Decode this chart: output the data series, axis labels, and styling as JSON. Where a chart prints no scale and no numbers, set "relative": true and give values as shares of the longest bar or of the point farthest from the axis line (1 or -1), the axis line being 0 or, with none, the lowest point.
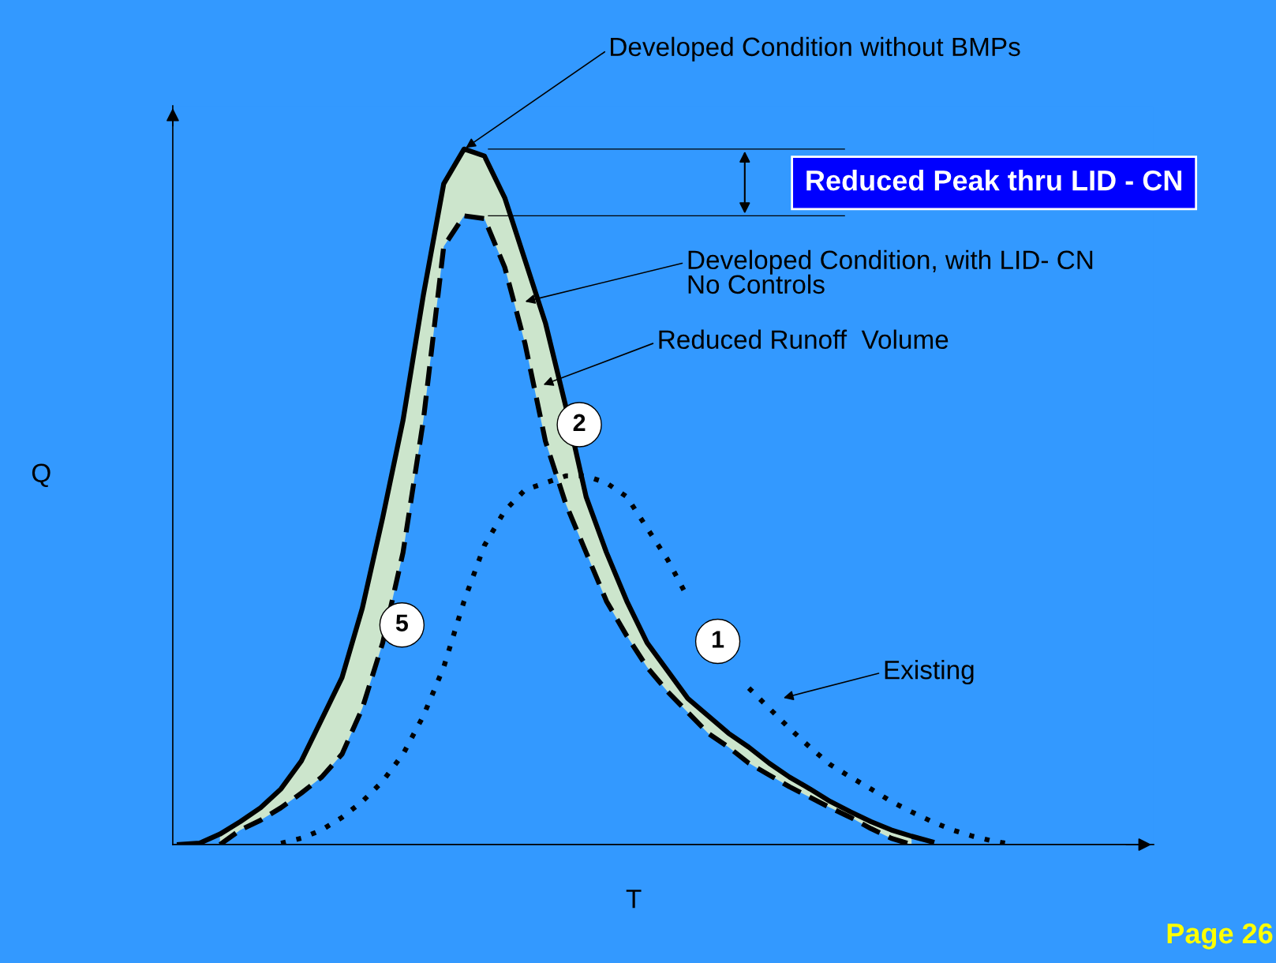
{
  "chart_data": {
    "type": "line",
    "relative": true,
    "xlabel": "T",
    "ylabel": "Q",
    "categories": [
      null,
      null,
      null,
      null,
      null,
      null,
      null,
      null,
      null,
      null,
      null,
      null,
      null,
      null,
      null,
      null,
      null,
      null,
      null,
      null,
      null,
      null,
      null,
      null,
      null,
      null,
      null,
      null,
      null,
      null,
      null,
      null,
      null,
      null,
      null,
      null,
      null,
      null,
      null,
      null,
      null,
      null
    ],
    "series": [
      {
        "color": "#000000",
        "line_style": "solid",
        "values": [
          0,
          0.002,
          0.015,
          0.033,
          0.053,
          0.08,
          0.12,
          0.18,
          0.24,
          0.34,
          0.47,
          0.61,
          0.79,
          0.95,
          1.0,
          0.99,
          0.93,
          0.84,
          0.75,
          0.63,
          0.5,
          0.42,
          0.35,
          0.29,
          0.25,
          0.21,
          0.185,
          0.16,
          0.14,
          0.117,
          0.097,
          0.08,
          0.062,
          0.047,
          0.033,
          0.021,
          0.012,
          0.004,
          null,
          null,
          null,
          null
        ],
        "lower": [
          null,
          null,
          0,
          0.021,
          0.035,
          0.053,
          0.074,
          0.097,
          0.13,
          0.196,
          0.29,
          0.42,
          0.61,
          0.86,
          0.904,
          0.9,
          0.83,
          0.72,
          0.58,
          0.49,
          0.42,
          0.35,
          0.3,
          0.255,
          0.22,
          0.19,
          0.16,
          0.14,
          0.117,
          0.1,
          0.083,
          0.068,
          0.053,
          0.039,
          0.023,
          0.009,
          0,
          null,
          null,
          null,
          null,
          null
        ],
        "upper": [
          null,
          null,
          0.015,
          0.033,
          0.053,
          0.08,
          0.12,
          0.18,
          0.24,
          0.34,
          0.47,
          0.61,
          0.79,
          0.95,
          1.0,
          0.99,
          0.93,
          0.84,
          0.75,
          0.63,
          0.5,
          0.42,
          0.35,
          0.29,
          0.25,
          0.21,
          0.185,
          0.16,
          0.14,
          0.117,
          0.097,
          0.08,
          0.062,
          0.047,
          0.033,
          0.021,
          0.012,
          null,
          null,
          null,
          null,
          null
        ]
      },
      {
        "color": "#000000",
        "line_style": "dashed",
        "values": [
          null,
          null,
          0,
          0.021,
          0.035,
          0.053,
          0.074,
          0.097,
          0.13,
          0.196,
          0.29,
          0.42,
          0.61,
          0.86,
          0.904,
          0.9,
          0.83,
          0.72,
          0.58,
          0.49,
          0.42,
          0.35,
          0.3,
          0.255,
          0.22,
          0.19,
          0.16,
          0.14,
          0.117,
          0.1,
          0.083,
          0.068,
          0.053,
          0.039,
          0.023,
          0.009,
          0,
          null,
          null,
          null,
          null,
          null
        ]
      },
      {
        "color": "#000000",
        "line_style": "dotted",
        "values": [
          null,
          null,
          null,
          null,
          null,
          0.002,
          0.009,
          0.021,
          0.039,
          0.062,
          0.091,
          0.13,
          0.185,
          0.255,
          0.35,
          0.43,
          0.48,
          0.51,
          0.52,
          0.53,
          0.53,
          0.52,
          0.5,
          0.455,
          0.41,
          0.355,
          null,
          null,
          0.225,
          0.196,
          0.167,
          0.14,
          0.115,
          0.097,
          0.08,
          0.062,
          0.047,
          0.033,
          0.021,
          0.012,
          0.005,
          0
        ]
      }
    ],
    "annotations": [
      "Developed Condition without BMPs",
      "Reduced Peak thru LID - CN",
      "Developed Condition, with LID- CN\nNo Controls",
      "Reduced Runoff  Volume",
      "Existing",
      "2",
      "5",
      "1",
      "Page 26"
    ],
    "legend": false
  }
}
